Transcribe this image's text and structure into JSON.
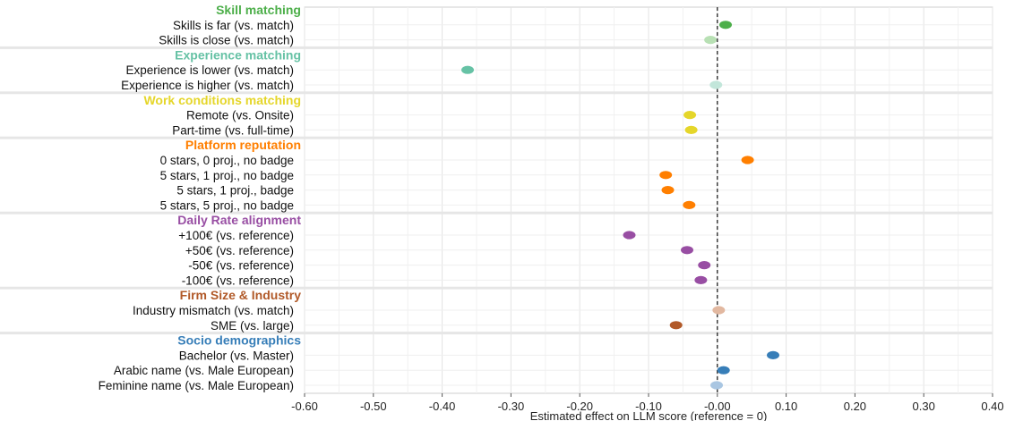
{
  "chart_data": {
    "type": "scatter",
    "xlabel": "Estimated effect on LLM score (reference = 0)",
    "xlim": [
      -0.6,
      0.4
    ],
    "x_ticks": [
      "-0.60",
      "-0.50",
      "-0.40",
      "-0.30",
      "-0.20",
      "-0.10",
      "-0.00",
      "0.10",
      "0.20",
      "0.30",
      "0.40"
    ],
    "reference_line": 0,
    "grid": true,
    "groups": [
      {
        "name": "Skill matching",
        "color": "#4daf4a",
        "items": [
          {
            "label": "Skills is far (vs. match)",
            "x": 0.012,
            "color": "#4daf4a"
          },
          {
            "label": "Skills is close (vs. match)",
            "x": -0.01,
            "color": "#b8e0b4"
          }
        ]
      },
      {
        "name": "Experience matching",
        "color": "#66c2a5",
        "items": [
          {
            "label": "Experience is lower (vs. match)",
            "x": -0.363,
            "color": "#66c2a5"
          },
          {
            "label": "Experience is higher (vs. match)",
            "x": -0.002,
            "color": "#c2e6da"
          }
        ]
      },
      {
        "name": "Work conditions matching",
        "color": "#e5d62a",
        "items": [
          {
            "label": "Remote (vs. Onsite)",
            "x": -0.04,
            "color": "#e5d62a"
          },
          {
            "label": "Part-time (vs. full-time)",
            "x": -0.038,
            "color": "#e5d62a"
          }
        ]
      },
      {
        "name": "Platform reputation",
        "color": "#ff7f00",
        "items": [
          {
            "label": "0 stars, 0 proj., no badge",
            "x": 0.044,
            "color": "#ff7f00"
          },
          {
            "label": "5 stars, 1 proj., no badge",
            "x": -0.075,
            "color": "#ff7f00"
          },
          {
            "label": "5 stars, 1 proj., badge",
            "x": -0.072,
            "color": "#ff7f00"
          },
          {
            "label": "5 stars, 5 proj., no badge",
            "x": -0.041,
            "color": "#ff7f00"
          }
        ]
      },
      {
        "name": "Daily Rate alignment",
        "color": "#984ea3",
        "items": [
          {
            "label": "+100€ (vs. reference)",
            "x": -0.128,
            "color": "#984ea3"
          },
          {
            "label": "+50€ (vs. reference)",
            "x": -0.044,
            "color": "#984ea3"
          },
          {
            "label": "-50€ (vs. reference)",
            "x": -0.019,
            "color": "#984ea3"
          },
          {
            "label": "-100€ (vs. reference)",
            "x": -0.024,
            "color": "#984ea3"
          }
        ]
      },
      {
        "name": "Firm Size & Industry",
        "color": "#b15928",
        "items": [
          {
            "label": "Industry mismatch (vs. match)",
            "x": 0.002,
            "color": "#e2b8a0"
          },
          {
            "label": "SME (vs. large)",
            "x": -0.06,
            "color": "#b15928"
          }
        ]
      },
      {
        "name": "Socio demographics",
        "color": "#377eb8",
        "items": [
          {
            "label": "Bachelor (vs. Master)",
            "x": 0.081,
            "color": "#377eb8"
          },
          {
            "label": "Arabic name (vs. Male European)",
            "x": 0.009,
            "color": "#377eb8"
          },
          {
            "label": "Feminine name (vs. Male European)",
            "x": -0.001,
            "color": "#a9c6e2"
          }
        ]
      }
    ]
  }
}
